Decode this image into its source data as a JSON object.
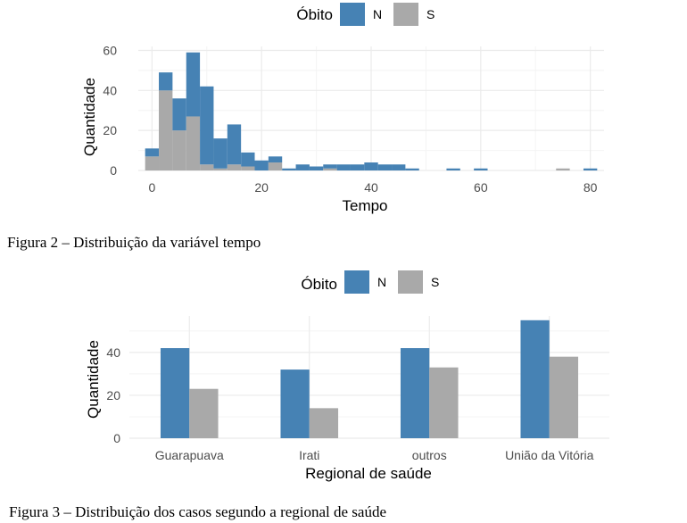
{
  "chart_data": [
    {
      "type": "bar",
      "subtype": "stacked-histogram",
      "caption": "Figura 2 – Distribuição da variável tempo",
      "legend": {
        "title": "Óbito",
        "placement": "top",
        "entries": [
          {
            "label": "N",
            "color": "#4682b4"
          },
          {
            "label": "S",
            "color": "#a9a9a9"
          }
        ]
      },
      "xlabel": "Tempo",
      "ylabel": "Quantidade",
      "xlim": [
        -2.5,
        82.5
      ],
      "ylim": [
        0,
        62
      ],
      "xticks": [
        0,
        20,
        40,
        60,
        80
      ],
      "yticks": [
        0,
        20,
        40,
        60
      ],
      "grid": true,
      "bin_width": 2.5,
      "bins": [
        {
          "x0": -1.25,
          "x1": 1.25,
          "n": 4,
          "s": 7
        },
        {
          "x0": 1.25,
          "x1": 3.75,
          "n": 9,
          "s": 40
        },
        {
          "x0": 3.75,
          "x1": 6.25,
          "n": 16,
          "s": 20
        },
        {
          "x0": 6.25,
          "x1": 8.75,
          "n": 32,
          "s": 27
        },
        {
          "x0": 8.75,
          "x1": 11.25,
          "n": 39,
          "s": 3
        },
        {
          "x0": 11.25,
          "x1": 13.75,
          "n": 15,
          "s": 1
        },
        {
          "x0": 13.75,
          "x1": 16.25,
          "n": 20,
          "s": 3
        },
        {
          "x0": 16.25,
          "x1": 18.75,
          "n": 7,
          "s": 2
        },
        {
          "x0": 18.75,
          "x1": 21.25,
          "n": 5,
          "s": 0
        },
        {
          "x0": 21.25,
          "x1": 23.75,
          "n": 3,
          "s": 4
        },
        {
          "x0": 23.75,
          "x1": 26.25,
          "n": 1,
          "s": 0
        },
        {
          "x0": 26.25,
          "x1": 28.75,
          "n": 3,
          "s": 0
        },
        {
          "x0": 28.75,
          "x1": 31.25,
          "n": 2,
          "s": 0
        },
        {
          "x0": 31.25,
          "x1": 33.75,
          "n": 2,
          "s": 1
        },
        {
          "x0": 33.75,
          "x1": 36.25,
          "n": 3,
          "s": 0
        },
        {
          "x0": 36.25,
          "x1": 38.75,
          "n": 3,
          "s": 0
        },
        {
          "x0": 38.75,
          "x1": 41.25,
          "n": 4,
          "s": 0
        },
        {
          "x0": 41.25,
          "x1": 43.75,
          "n": 3,
          "s": 0
        },
        {
          "x0": 43.75,
          "x1": 46.25,
          "n": 3,
          "s": 0
        },
        {
          "x0": 46.25,
          "x1": 48.75,
          "n": 1,
          "s": 0
        },
        {
          "x0": 53.75,
          "x1": 56.25,
          "n": 1,
          "s": 0
        },
        {
          "x0": 58.75,
          "x1": 61.25,
          "n": 1,
          "s": 0
        },
        {
          "x0": 73.75,
          "x1": 76.25,
          "n": 0,
          "s": 1
        },
        {
          "x0": 78.75,
          "x1": 81.25,
          "n": 1,
          "s": 0
        }
      ]
    },
    {
      "type": "bar",
      "subtype": "grouped",
      "caption": "Figura 3 – Distribuição dos casos segundo a regional de saúde",
      "legend": {
        "title": "Óbito",
        "placement": "top",
        "entries": [
          {
            "label": "N",
            "color": "#4682b4"
          },
          {
            "label": "S",
            "color": "#a9a9a9"
          }
        ]
      },
      "xlabel": "Regional de saúde",
      "ylabel": "Quantidade",
      "ylim": [
        0,
        57
      ],
      "yticks": [
        0,
        20,
        40
      ],
      "grid": true,
      "categories": [
        "Guarapuava",
        "Irati",
        "outros",
        "União da Vitória"
      ],
      "series": [
        {
          "name": "N",
          "values": [
            42,
            32,
            42,
            55
          ]
        },
        {
          "name": "S",
          "values": [
            23,
            14,
            33,
            38
          ]
        }
      ]
    }
  ]
}
